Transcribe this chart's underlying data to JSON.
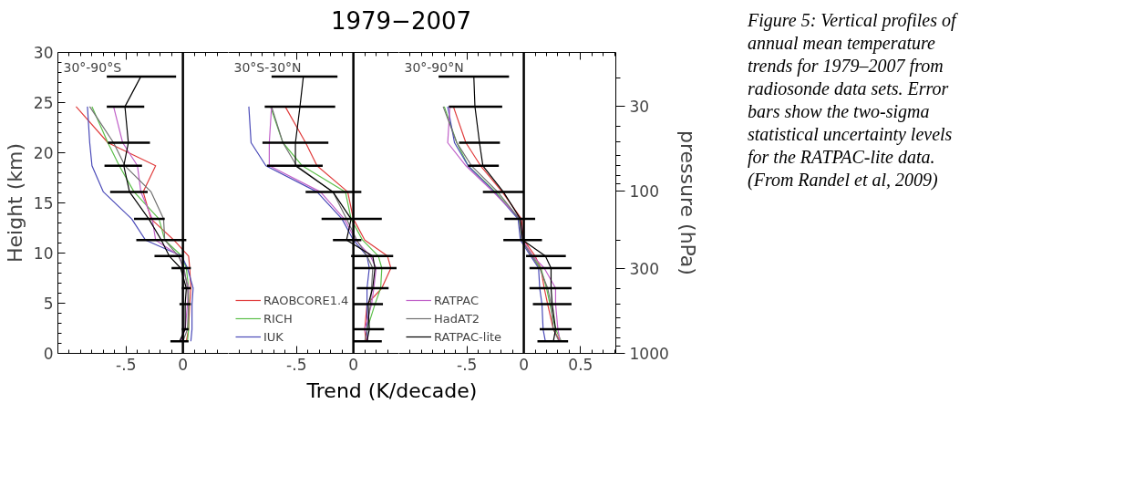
{
  "chart_data": [
    {
      "type": "line",
      "orientation": "horizontal",
      "ylabel": "Height (km)",
      "annotations": [
        "30°-90°S"
      ],
      "xlim": [
        -1.1,
        0.4
      ],
      "xticks": [
        {
          "value": -1.0,
          "label": null
        },
        {
          "value": -0.9,
          "label": null
        },
        {
          "value": -0.8,
          "label": null
        },
        {
          "value": -0.7,
          "label": null
        },
        {
          "value": -0.6,
          "label": null
        },
        {
          "value": -0.5,
          "label": "-.5"
        },
        {
          "value": -0.4,
          "label": null
        },
        {
          "value": -0.3,
          "label": null
        },
        {
          "value": -0.2,
          "label": null
        },
        {
          "value": -0.1,
          "label": null
        },
        {
          "value": 0,
          "label": "0"
        },
        {
          "value": 0.1,
          "label": null
        },
        {
          "value": 0.2,
          "label": null
        },
        {
          "value": 0.3,
          "label": null
        }
      ],
      "ylim": [
        0,
        30
      ],
      "yticks": [
        0,
        5,
        10,
        15,
        20,
        25,
        30,
        {
          "value": 1,
          "label": null
        },
        {
          "value": 2,
          "label": null
        },
        {
          "value": 3,
          "label": null
        },
        {
          "value": 4,
          "label": null
        },
        {
          "value": 6,
          "label": null
        },
        {
          "value": 7,
          "label": null
        },
        {
          "value": 8,
          "label": null
        },
        {
          "value": 9,
          "label": null
        },
        {
          "value": 11,
          "label": null
        },
        {
          "value": 12,
          "label": null
        },
        {
          "value": 13,
          "label": null
        },
        {
          "value": 14,
          "label": null
        },
        {
          "value": 16,
          "label": null
        },
        {
          "value": 17,
          "label": null
        },
        {
          "value": 18,
          "label": null
        },
        {
          "value": 19,
          "label": null
        },
        {
          "value": 21,
          "label": null
        },
        {
          "value": 22,
          "label": null
        },
        {
          "value": 23,
          "label": null
        },
        {
          "value": 24,
          "label": null
        },
        {
          "value": 26,
          "label": null
        },
        {
          "value": 27,
          "label": null
        },
        {
          "value": 28,
          "label": null
        },
        {
          "value": 29,
          "label": null
        }
      ],
      "ref_lines": [
        {
          "axis": "x",
          "value": 0,
          "color": "#000000"
        }
      ],
      "series": [
        {
          "color": "#e03c3c",
          "x": [
            24.6,
            21.0,
            18.7,
            16.1,
            13.4,
            11.3,
            9.7,
            8.5,
            6.5,
            4.9,
            2.4,
            1.2
          ],
          "values": [
            -0.94,
            -0.66,
            -0.24,
            -0.35,
            -0.28,
            -0.08,
            0.05,
            0.06,
            0.07,
            0.06,
            0.05,
            0.03
          ]
        },
        {
          "color": "#5cbf4a",
          "x": [
            24.6,
            21.0,
            18.7,
            16.1,
            13.4,
            11.3,
            9.7,
            8.5,
            6.5,
            4.9,
            2.4,
            1.2
          ],
          "values": [
            -0.8,
            -0.66,
            -0.56,
            -0.43,
            -0.21,
            -0.16,
            -0.01,
            0.03,
            0.05,
            0.05,
            0.05,
            0.04
          ]
        },
        {
          "color": "#4a4ab8",
          "x": [
            24.6,
            21.0,
            18.7,
            16.1,
            13.4,
            11.3,
            9.7,
            8.5,
            6.5,
            4.9,
            2.4,
            1.2
          ],
          "values": [
            -0.84,
            -0.82,
            -0.8,
            -0.7,
            -0.45,
            -0.33,
            -0.01,
            0.04,
            0.09,
            0.08,
            0.08,
            0.07
          ]
        },
        {
          "color": "#c060c8",
          "x": [
            24.6,
            21.0,
            18.7,
            16.1,
            13.4,
            11.3,
            9.7,
            8.5,
            6.5,
            4.9,
            2.4,
            1.2
          ],
          "values": [
            -0.61,
            -0.53,
            -0.4,
            -0.37,
            -0.27,
            -0.24,
            -0.03,
            0.0,
            0.05,
            0.04,
            0.02,
            -0.02
          ]
        },
        {
          "color": "#707070",
          "x": [
            24.6,
            21.0,
            18.7,
            16.1,
            13.4,
            11.3,
            9.7,
            8.5,
            6.5,
            4.9,
            2.4,
            1.2
          ],
          "values": [
            -0.82,
            -0.61,
            -0.51,
            -0.28,
            -0.17,
            -0.16,
            -0.04,
            0.01,
            0.04,
            0.05,
            0.04,
            0.0
          ]
        },
        {
          "color": "#000000",
          "x": [
            27.6,
            24.6,
            21.0,
            18.7,
            16.1,
            13.4,
            11.3,
            9.7,
            8.5,
            6.5,
            4.9,
            2.4,
            1.2
          ],
          "values": [
            -0.37,
            -0.51,
            -0.48,
            -0.52,
            -0.47,
            -0.3,
            -0.19,
            -0.12,
            -0.02,
            0.03,
            0.02,
            0.02,
            -0.03
          ],
          "errors": [
            [
              -0.67,
              -0.06
            ],
            [
              -0.67,
              -0.34
            ],
            [
              -0.66,
              -0.29
            ],
            [
              -0.69,
              -0.36
            ],
            [
              -0.64,
              -0.31
            ],
            [
              -0.43,
              -0.16
            ],
            [
              -0.41,
              0.03
            ],
            [
              -0.25,
              0.0
            ],
            [
              -0.1,
              0.07
            ],
            [
              -0.01,
              0.07
            ],
            [
              -0.03,
              0.07
            ],
            [
              -0.01,
              0.05
            ],
            [
              -0.11,
              0.05
            ]
          ]
        }
      ]
    },
    {
      "type": "line",
      "orientation": "horizontal",
      "title": "1979−2007",
      "xlabel": "Trend (K/decade)",
      "annotations": [
        "30°S-30°N"
      ],
      "tick_labels": "x",
      "legend": "bottom left",
      "xlim": [
        -1.1,
        0.4
      ],
      "xticks": [
        {
          "value": -1.0,
          "label": null
        },
        {
          "value": -0.9,
          "label": null
        },
        {
          "value": -0.8,
          "label": null
        },
        {
          "value": -0.7,
          "label": null
        },
        {
          "value": -0.6,
          "label": null
        },
        {
          "value": -0.5,
          "label": "-.5"
        },
        {
          "value": -0.4,
          "label": null
        },
        {
          "value": -0.3,
          "label": null
        },
        {
          "value": -0.2,
          "label": null
        },
        {
          "value": -0.1,
          "label": null
        },
        {
          "value": 0,
          "label": "0"
        },
        {
          "value": 0.1,
          "label": null
        },
        {
          "value": 0.2,
          "label": null
        },
        {
          "value": 0.3,
          "label": null
        }
      ],
      "ylim": [
        0,
        30
      ],
      "ref_lines": [
        {
          "axis": "x",
          "value": 0,
          "color": "#000000"
        }
      ],
      "series": [
        {
          "name": "RAOBCORE1.4",
          "color": "#e03c3c",
          "x": [
            24.6,
            21.0,
            18.7,
            16.1,
            13.4,
            11.3,
            9.7,
            8.5,
            6.5,
            4.9,
            2.4,
            1.2
          ],
          "values": [
            -0.6,
            -0.42,
            -0.32,
            -0.05,
            0.0,
            0.1,
            0.3,
            0.33,
            0.25,
            0.12,
            0.1,
            0.11
          ]
        },
        {
          "name": "RICH",
          "color": "#5cbf4a",
          "x": [
            24.6,
            21.0,
            18.7,
            16.1,
            13.4,
            11.3,
            9.7,
            8.5,
            6.5,
            4.9,
            2.4,
            1.2
          ],
          "values": [
            -0.73,
            -0.62,
            -0.45,
            -0.07,
            -0.02,
            0.08,
            0.22,
            0.25,
            0.24,
            0.19,
            0.12,
            0.12
          ]
        },
        {
          "name": "IUK",
          "color": "#4a4ab8",
          "x": [
            24.6,
            21.0,
            18.7,
            16.1,
            13.4,
            11.3,
            9.7,
            8.5,
            6.5,
            4.9,
            2.4,
            1.2
          ],
          "values": [
            -0.92,
            -0.9,
            -0.77,
            -0.32,
            -0.1,
            0.0,
            0.12,
            0.14,
            0.12,
            0.12,
            0.12,
            0.12
          ]
        },
        {
          "color": "#c060c8",
          "x": [
            24.6,
            21.0,
            18.7,
            16.1,
            13.4,
            11.3,
            9.7,
            8.5,
            6.5,
            4.9,
            2.4,
            1.2
          ],
          "values": [
            -0.72,
            -0.74,
            -0.74,
            -0.29,
            -0.08,
            0.02,
            0.15,
            0.2,
            0.18,
            0.16,
            0.1,
            0.13
          ]
        },
        {
          "color": "#707070",
          "x": [
            24.6,
            21.0,
            18.7,
            16.1,
            13.4,
            11.3,
            9.7,
            8.5,
            6.5,
            4.9,
            2.4,
            1.2
          ],
          "values": [
            -0.72,
            -0.62,
            -0.5,
            -0.18,
            -0.06,
            0.03,
            0.12,
            0.17,
            0.16,
            0.15,
            0.12,
            0.1
          ]
        },
        {
          "color": "#000000",
          "x": [
            27.6,
            24.6,
            21.0,
            18.7,
            16.1,
            13.4,
            11.3,
            9.7,
            8.5,
            6.5,
            4.9,
            2.4,
            1.2
          ],
          "values": [
            -0.44,
            -0.47,
            -0.51,
            -0.51,
            -0.18,
            -0.02,
            -0.06,
            0.17,
            0.19,
            0.17,
            0.13,
            0.14,
            0.12
          ],
          "errors": [
            [
              -0.72,
              -0.14
            ],
            [
              -0.78,
              -0.16
            ],
            [
              -0.8,
              -0.22
            ],
            [
              -0.76,
              -0.27
            ],
            [
              -0.42,
              0.07
            ],
            [
              -0.28,
              0.25
            ],
            [
              -0.18,
              0.07
            ],
            [
              -0.02,
              0.35
            ],
            [
              0.0,
              0.38
            ],
            [
              0.03,
              0.31
            ],
            [
              0.0,
              0.26
            ],
            [
              0.0,
              0.27
            ],
            [
              0.0,
              0.25
            ]
          ]
        }
      ]
    },
    {
      "type": "line",
      "orientation": "horizontal",
      "y2label": "pressure (hPa)",
      "annotations": [
        "30°-90°N",
        "Figure 5: Vertical profiles of annual mean temperature trends for 1979–2007 from radiosonde data sets. Error bars show the two-sigma statistical uncertainty levels for the RATPAC-lite data. (From Randel et al, 2009)"
      ],
      "tick_labels": "x",
      "legend": "bottom left",
      "log": "y2",
      "xlim": [
        -1.1,
        0.81
      ],
      "xticks": [
        {
          "value": -1.0,
          "label": null
        },
        {
          "value": -0.9,
          "label": null
        },
        {
          "value": -0.8,
          "label": null
        },
        {
          "value": -0.7,
          "label": null
        },
        {
          "value": -0.6,
          "label": null
        },
        {
          "value": -0.5,
          "label": "-.5"
        },
        {
          "value": -0.4,
          "label": null
        },
        {
          "value": -0.3,
          "label": null
        },
        {
          "value": -0.2,
          "label": null
        },
        {
          "value": -0.1,
          "label": null
        },
        {
          "value": 0,
          "label": "0"
        },
        {
          "value": 0.1,
          "label": null
        },
        {
          "value": 0.2,
          "label": null
        },
        {
          "value": 0.3,
          "label": null
        },
        {
          "value": 0.4,
          "label": null
        },
        {
          "value": 0.5,
          "label": "0.5"
        },
        {
          "value": 0.6,
          "label": null
        },
        {
          "value": 0.7,
          "label": null
        },
        {
          "value": 0.8,
          "label": null
        }
      ],
      "ylim": [
        0,
        30
      ],
      "y2lim": [
        1000,
        14
      ],
      "y2ticks": [
        {
          "value": 30,
          "label": "30"
        },
        {
          "value": 100,
          "label": "100"
        },
        {
          "value": 300,
          "label": "300"
        },
        {
          "value": 1000,
          "label": "1000"
        },
        {
          "value": 20,
          "label": null
        },
        {
          "value": 40,
          "label": null
        },
        {
          "value": 50,
          "label": null
        },
        {
          "value": 60,
          "label": null
        },
        {
          "value": 70,
          "label": null
        },
        {
          "value": 80,
          "label": null
        },
        {
          "value": 90,
          "label": null
        },
        {
          "value": 200,
          "label": null
        },
        {
          "value": 400,
          "label": null
        },
        {
          "value": 500,
          "label": null
        },
        {
          "value": 600,
          "label": null
        },
        {
          "value": 700,
          "label": null
        },
        {
          "value": 800,
          "label": null
        },
        {
          "value": 900,
          "label": null
        }
      ],
      "ref_lines": [
        {
          "axis": "x",
          "value": 0,
          "color": "#000000"
        }
      ],
      "series": [
        {
          "color": "#e03c3c",
          "x": [
            24.6,
            21.0,
            18.7,
            16.1,
            13.4,
            11.3,
            9.7,
            8.5,
            6.5,
            4.9,
            2.4,
            1.2
          ],
          "values": [
            -0.62,
            -0.51,
            -0.38,
            -0.19,
            -0.02,
            0.0,
            0.1,
            0.15,
            0.18,
            0.21,
            0.26,
            0.32
          ]
        },
        {
          "color": "#5cbf4a",
          "x": [
            24.6,
            21.0,
            18.7,
            16.1,
            13.4,
            11.3,
            9.7,
            8.5,
            6.5,
            4.9,
            2.4,
            1.2
          ],
          "values": [
            -0.7,
            -0.59,
            -0.49,
            -0.25,
            -0.04,
            -0.02,
            0.08,
            0.15,
            0.2,
            0.23,
            0.28,
            0.33
          ]
        },
        {
          "color": "#4a4ab8",
          "x": [
            24.6,
            21.0,
            18.7,
            16.1,
            13.4,
            11.3,
            9.7,
            8.5,
            6.5,
            4.9,
            2.4,
            1.2
          ],
          "values": [
            -0.67,
            -0.61,
            -0.49,
            -0.26,
            -0.05,
            -0.03,
            0.06,
            0.13,
            0.14,
            0.16,
            0.17,
            0.19
          ]
        },
        {
          "name": "RATPAC",
          "color": "#c060c8",
          "x": [
            24.6,
            21.0,
            18.7,
            16.1,
            13.4,
            11.3,
            9.7,
            8.5,
            6.5,
            4.9,
            2.4,
            1.2
          ],
          "values": [
            -0.65,
            -0.67,
            -0.51,
            -0.27,
            -0.03,
            -0.01,
            0.08,
            0.18,
            0.28,
            0.28,
            0.3,
            0.32
          ]
        },
        {
          "name": "HadAT2",
          "color": "#707070",
          "x": [
            24.6,
            21.0,
            18.7,
            16.1,
            13.4,
            11.3,
            9.7,
            8.5,
            6.5,
            4.9,
            2.4,
            1.2
          ],
          "values": [
            -0.71,
            -0.59,
            -0.46,
            -0.23,
            -0.04,
            -0.02,
            0.07,
            0.14,
            0.21,
            0.24,
            0.26,
            0.31
          ]
        },
        {
          "name": "RATPAC-lite",
          "color": "#000000",
          "x": [
            27.6,
            24.6,
            21.0,
            18.7,
            16.1,
            13.4,
            11.3,
            9.7,
            8.5,
            6.5,
            4.9,
            2.4,
            1.2
          ],
          "values": [
            -0.44,
            -0.43,
            -0.39,
            -0.36,
            -0.18,
            -0.03,
            -0.01,
            0.19,
            0.24,
            0.24,
            0.25,
            0.28,
            0.26
          ],
          "errors": [
            [
              -0.75,
              -0.13
            ],
            [
              -0.66,
              -0.19
            ],
            [
              -0.57,
              -0.21
            ],
            [
              -0.49,
              -0.22
            ],
            [
              -0.36,
              0.0
            ],
            [
              -0.17,
              0.1
            ],
            [
              -0.18,
              0.16
            ],
            [
              0.02,
              0.37
            ],
            [
              0.05,
              0.42
            ],
            [
              0.05,
              0.42
            ],
            [
              0.08,
              0.42
            ],
            [
              0.14,
              0.42
            ],
            [
              0.12,
              0.39
            ]
          ]
        }
      ]
    }
  ]
}
